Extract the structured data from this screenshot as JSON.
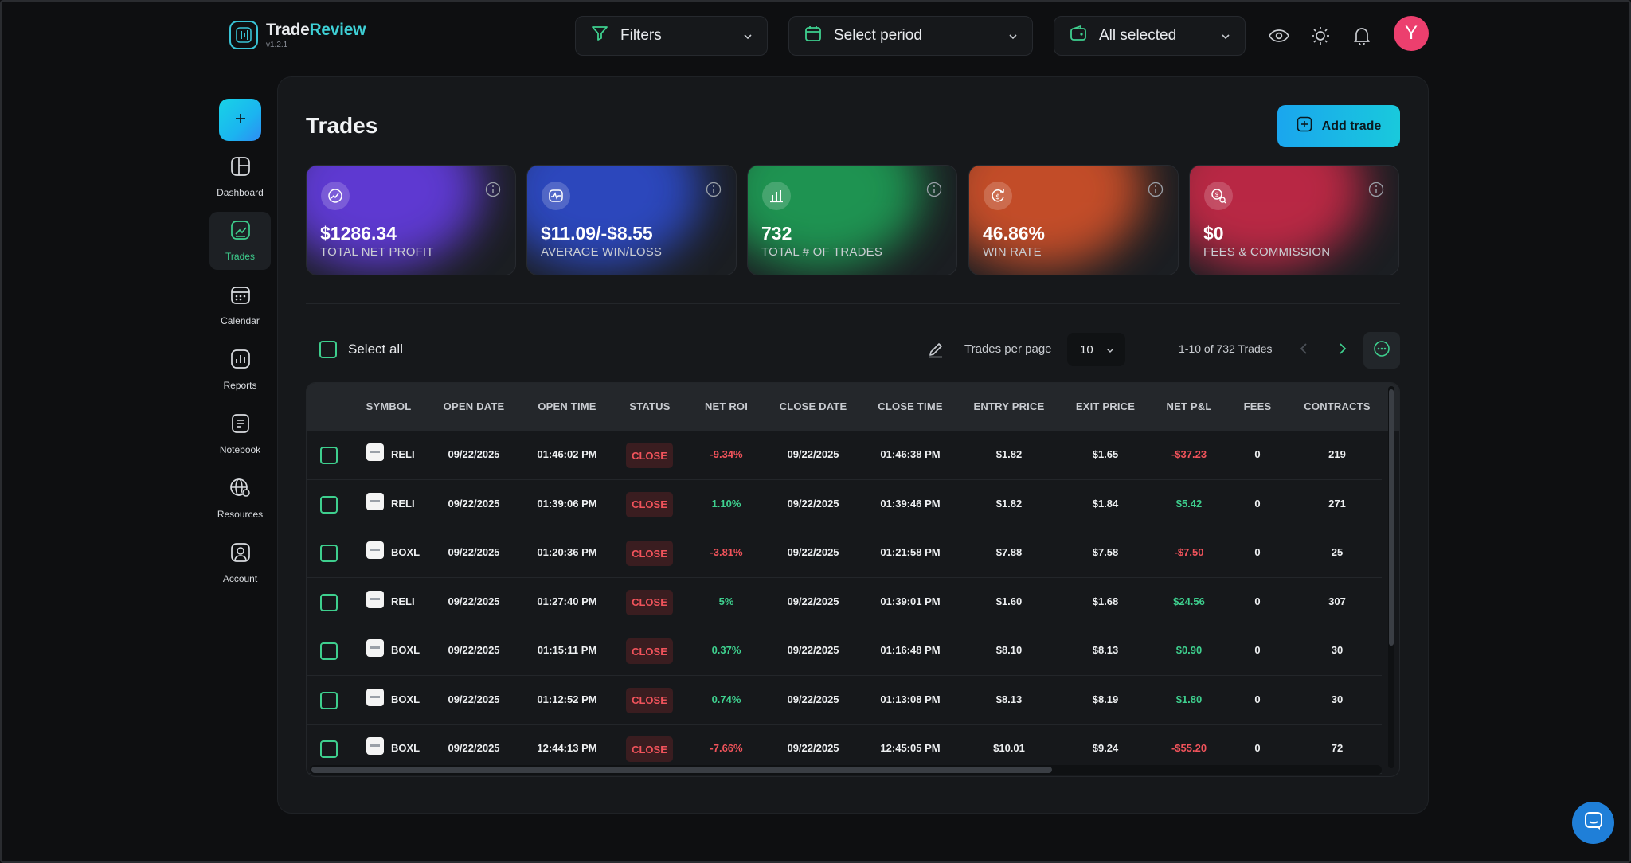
{
  "app": {
    "name_main": "Trade",
    "name_accent": "Review",
    "version": "v1.2.1"
  },
  "header": {
    "filters_label": "Filters",
    "period_label": "Select period",
    "accounts_label": "All selected",
    "avatar_initial": "Y"
  },
  "sidebar": {
    "items": [
      {
        "label": "Dashboard",
        "icon": "dashboard-icon"
      },
      {
        "label": "Trades",
        "icon": "trades-icon",
        "active": true
      },
      {
        "label": "Calendar",
        "icon": "calendar-icon"
      },
      {
        "label": "Reports",
        "icon": "reports-icon"
      },
      {
        "label": "Notebook",
        "icon": "notebook-icon"
      },
      {
        "label": "Resources",
        "icon": "resources-icon"
      },
      {
        "label": "Account",
        "icon": "account-icon"
      }
    ]
  },
  "page": {
    "title": "Trades",
    "add_trade_label": "Add trade"
  },
  "stats": [
    {
      "value": "$1286.34",
      "label": "TOTAL NET PROFIT",
      "icon": "profit-chart-icon",
      "color": "#6a3ff0"
    },
    {
      "value": "$11.09/-$8.55",
      "label": "AVERAGE WIN/LOSS",
      "icon": "pulse-icon",
      "color": "#2f4fd8"
    },
    {
      "value": "732",
      "label": "TOTAL # OF TRADES",
      "icon": "bar-chart-icon",
      "color": "#1fa85a"
    },
    {
      "value": "46.86%",
      "label": "WIN RATE",
      "icon": "dollar-refresh-icon",
      "color": "#e0552a"
    },
    {
      "value": "$0",
      "label": "FEES & COMMISSION",
      "icon": "dollar-search-icon",
      "color": "#d42a4a"
    }
  ],
  "toolbar": {
    "select_all_label": "Select all",
    "per_page_label": "Trades per page",
    "per_page_value": "10",
    "range_text": "1-10 of 732 Trades"
  },
  "table": {
    "columns": [
      "SYMBOL",
      "OPEN DATE",
      "OPEN TIME",
      "STATUS",
      "NET ROI",
      "CLOSE DATE",
      "CLOSE TIME",
      "ENTRY PRICE",
      "EXIT PRICE",
      "NET P&L",
      "FEES",
      "CONTRACTS"
    ],
    "rows": [
      {
        "symbol": "RELI",
        "open_date": "09/22/2025",
        "open_time": "01:46:02 PM",
        "status": "CLOSE",
        "roi": "-9.34%",
        "close_date": "09/22/2025",
        "close_time": "01:46:38 PM",
        "entry": "$1.82",
        "exit": "$1.65",
        "pnl": "-$37.23",
        "fees": "0",
        "contracts": "219",
        "sign": "neg"
      },
      {
        "symbol": "RELI",
        "open_date": "09/22/2025",
        "open_time": "01:39:06 PM",
        "status": "CLOSE",
        "roi": "1.10%",
        "close_date": "09/22/2025",
        "close_time": "01:39:46 PM",
        "entry": "$1.82",
        "exit": "$1.84",
        "pnl": "$5.42",
        "fees": "0",
        "contracts": "271",
        "sign": "pos"
      },
      {
        "symbol": "BOXL",
        "open_date": "09/22/2025",
        "open_time": "01:20:36 PM",
        "status": "CLOSE",
        "roi": "-3.81%",
        "close_date": "09/22/2025",
        "close_time": "01:21:58 PM",
        "entry": "$7.88",
        "exit": "$7.58",
        "pnl": "-$7.50",
        "fees": "0",
        "contracts": "25",
        "sign": "neg"
      },
      {
        "symbol": "RELI",
        "open_date": "09/22/2025",
        "open_time": "01:27:40 PM",
        "status": "CLOSE",
        "roi": "5%",
        "close_date": "09/22/2025",
        "close_time": "01:39:01 PM",
        "entry": "$1.60",
        "exit": "$1.68",
        "pnl": "$24.56",
        "fees": "0",
        "contracts": "307",
        "sign": "pos"
      },
      {
        "symbol": "BOXL",
        "open_date": "09/22/2025",
        "open_time": "01:15:11 PM",
        "status": "CLOSE",
        "roi": "0.37%",
        "close_date": "09/22/2025",
        "close_time": "01:16:48 PM",
        "entry": "$8.10",
        "exit": "$8.13",
        "pnl": "$0.90",
        "fees": "0",
        "contracts": "30",
        "sign": "pos"
      },
      {
        "symbol": "BOXL",
        "open_date": "09/22/2025",
        "open_time": "01:12:52 PM",
        "status": "CLOSE",
        "roi": "0.74%",
        "close_date": "09/22/2025",
        "close_time": "01:13:08 PM",
        "entry": "$8.13",
        "exit": "$8.19",
        "pnl": "$1.80",
        "fees": "0",
        "contracts": "30",
        "sign": "pos"
      },
      {
        "symbol": "BOXL",
        "open_date": "09/22/2025",
        "open_time": "12:44:13 PM",
        "status": "CLOSE",
        "roi": "-7.66%",
        "close_date": "09/22/2025",
        "close_time": "12:45:05 PM",
        "entry": "$10.01",
        "exit": "$9.24",
        "pnl": "-$55.20",
        "fees": "0",
        "contracts": "72",
        "sign": "neg"
      }
    ]
  },
  "colors": {
    "accent_green": "#3ecf8e",
    "negative_red": "#f0535b",
    "accent_cyan": "#19c9dc",
    "avatar_pink": "#ec3f6e"
  }
}
